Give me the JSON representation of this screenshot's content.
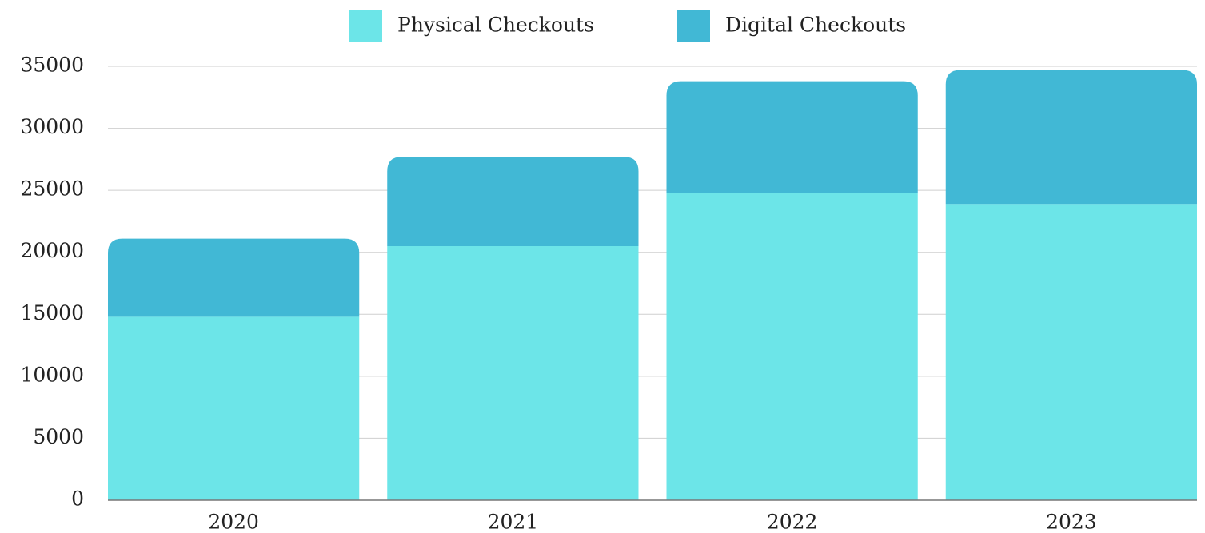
{
  "chart_data": {
    "type": "stacked-bar",
    "categories": [
      "2020",
      "2021",
      "2022",
      "2023"
    ],
    "series": [
      {
        "name": "Physical Checkouts",
        "color": "#6ce5e8",
        "values": [
          14800,
          20500,
          24800,
          23900
        ]
      },
      {
        "name": "Digital Checkouts",
        "color": "#41b8d5",
        "values": [
          6300,
          7200,
          9000,
          10800
        ]
      }
    ],
    "ylim": [
      0,
      35000
    ],
    "yticks": [
      0,
      5000,
      10000,
      15000,
      20000,
      25000,
      30000,
      35000
    ],
    "grid": true
  }
}
